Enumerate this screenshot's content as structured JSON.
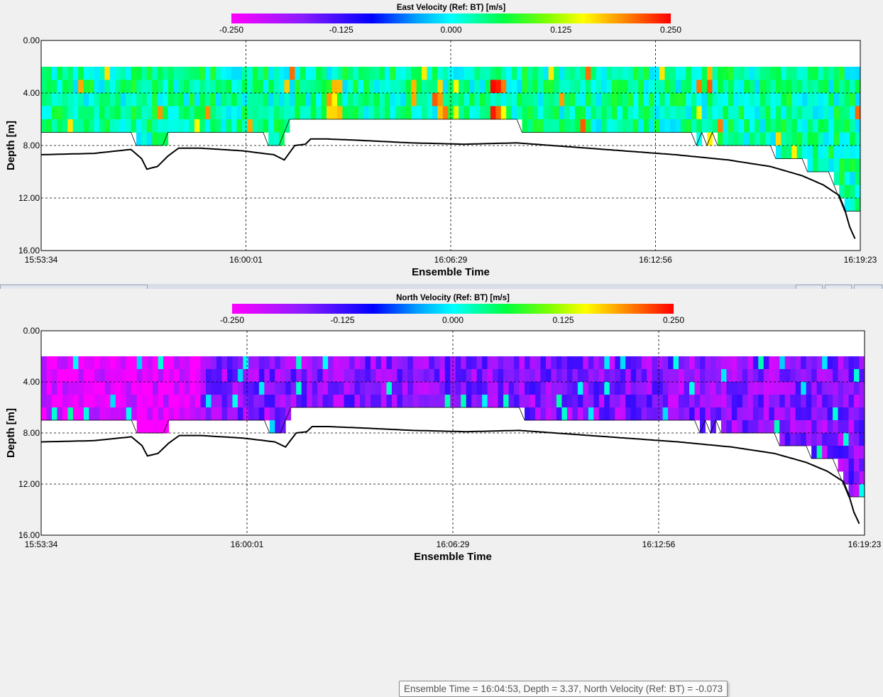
{
  "chart_data": [
    {
      "type": "heatmap",
      "title": "East Velocity (Ref: BT) [m/s]",
      "xlabel": "Ensemble Time",
      "ylabel": "Depth [m]",
      "x_ticks": [
        "15:53:34",
        "16:00:01",
        "16:06:29",
        "16:12:56",
        "16:19:23"
      ],
      "y_ticks": [
        "0.00",
        "4.00",
        "8.00",
        "12.00",
        "16.00"
      ],
      "ylim": [
        0,
        16
      ],
      "colorbar": {
        "ticks": [
          "-0.250",
          "-0.125",
          "0.000",
          "0.125",
          "0.250"
        ],
        "range": [
          -0.25,
          0.25
        ]
      },
      "grid": true,
      "cell_depth_top": 2,
      "cell_size_m": 1,
      "ensembles": 155,
      "last_valid_bin": [
        {
          "ens": 0,
          "depth": 7
        },
        {
          "ens": 17,
          "depth": 7
        },
        {
          "ens": 18,
          "depth": 8
        },
        {
          "ens": 23,
          "depth": 8
        },
        {
          "ens": 24,
          "depth": 7
        },
        {
          "ens": 42,
          "depth": 7
        },
        {
          "ens": 43,
          "depth": 8
        },
        {
          "ens": 45,
          "depth": 8
        },
        {
          "ens": 46,
          "depth": 7
        },
        {
          "ens": 47,
          "depth": 6
        },
        {
          "ens": 90,
          "depth": 6
        },
        {
          "ens": 91,
          "depth": 7
        },
        {
          "ens": 123,
          "depth": 7
        },
        {
          "ens": 124,
          "depth": 8
        },
        {
          "ens": 125,
          "depth": 7
        },
        {
          "ens": 126,
          "depth": 8
        },
        {
          "ens": 127,
          "depth": 7
        },
        {
          "ens": 128,
          "depth": 8
        },
        {
          "ens": 138,
          "depth": 8
        },
        {
          "ens": 139,
          "depth": 9
        },
        {
          "ens": 144,
          "depth": 9
        },
        {
          "ens": 145,
          "depth": 10
        },
        {
          "ens": 149,
          "depth": 10
        },
        {
          "ens": 150,
          "depth": 11
        },
        {
          "ens": 151,
          "depth": 12
        },
        {
          "ens": 152,
          "depth": 13
        },
        {
          "ens": 154,
          "depth": 13
        }
      ],
      "bottom_track": [
        {
          "ens": 0,
          "depth": 8.7
        },
        {
          "ens": 10,
          "depth": 8.6
        },
        {
          "ens": 17,
          "depth": 8.3
        },
        {
          "ens": 19,
          "depth": 9.0
        },
        {
          "ens": 20,
          "depth": 9.8
        },
        {
          "ens": 22,
          "depth": 9.6
        },
        {
          "ens": 24,
          "depth": 8.8
        },
        {
          "ens": 26,
          "depth": 8.2
        },
        {
          "ens": 30,
          "depth": 8.2
        },
        {
          "ens": 38,
          "depth": 8.4
        },
        {
          "ens": 44,
          "depth": 8.7
        },
        {
          "ens": 46,
          "depth": 9.1
        },
        {
          "ens": 48,
          "depth": 8.0
        },
        {
          "ens": 50,
          "depth": 7.9
        },
        {
          "ens": 51,
          "depth": 7.5
        },
        {
          "ens": 54,
          "depth": 7.5
        },
        {
          "ens": 60,
          "depth": 7.6
        },
        {
          "ens": 70,
          "depth": 7.8
        },
        {
          "ens": 80,
          "depth": 7.9
        },
        {
          "ens": 90,
          "depth": 7.8
        },
        {
          "ens": 100,
          "depth": 8.1
        },
        {
          "ens": 110,
          "depth": 8.4
        },
        {
          "ens": 120,
          "depth": 8.7
        },
        {
          "ens": 130,
          "depth": 9.1
        },
        {
          "ens": 138,
          "depth": 9.6
        },
        {
          "ens": 144,
          "depth": 10.3
        },
        {
          "ens": 148,
          "depth": 11.0
        },
        {
          "ens": 151,
          "depth": 11.8
        },
        {
          "ens": 152,
          "depth": 12.8
        },
        {
          "ens": 153,
          "depth": 14.2
        },
        {
          "ens": 154,
          "depth": 15.1
        }
      ],
      "field": {
        "mean": 0.03,
        "spread": 0.045,
        "hot_spots": [
          {
            "ens": 55,
            "depth": 4.5,
            "value": 0.2
          },
          {
            "ens": 75,
            "depth": 5.5,
            "value": 0.22
          },
          {
            "ens": 86,
            "depth": 4.5,
            "value": 0.25
          }
        ]
      }
    },
    {
      "type": "heatmap",
      "title": "North Velocity (Ref: BT) [m/s]",
      "xlabel": "Ensemble Time",
      "ylabel": "Depth [m]",
      "x_ticks": [
        "15:53:34",
        "16:00:01",
        "16:06:29",
        "16:12:56",
        "16:19:23"
      ],
      "y_ticks": [
        "0.00",
        "4.00",
        "8.00",
        "12.00",
        "16.00"
      ],
      "ylim": [
        0,
        16
      ],
      "colorbar": {
        "ticks": [
          "-0.250",
          "-0.125",
          "0.000",
          "0.125",
          "0.250"
        ],
        "range": [
          -0.25,
          0.25
        ]
      },
      "grid": true,
      "cell_depth_top": 2,
      "cell_size_m": 1,
      "ensembles": 155,
      "field": {
        "mean": -0.17,
        "spread": 0.05,
        "low_region_end_ens": 30,
        "low_region_mean": -0.235
      },
      "tooltip": "Ensemble Time = 16:04:53, Depth  = 3.37, North Velocity (Ref: BT)  = -0.073"
    }
  ]
}
